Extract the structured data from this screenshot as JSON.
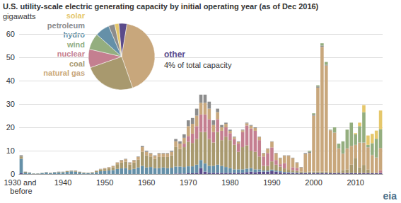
{
  "chart_data": [
    {
      "type": "bar",
      "title": "U.S. utility-scale electric generating capacity by initial operating year (as of Dec 2016)",
      "y_label": "gigawatts",
      "annotation": "eia",
      "stacked": true,
      "grid": true,
      "ylim": [
        0,
        60
      ],
      "yticks": [
        0,
        10,
        20,
        30,
        40,
        50,
        60
      ],
      "categories": [
        "1930 and before",
        null,
        null,
        null,
        null,
        null,
        null,
        null,
        null,
        null,
        "1940",
        null,
        null,
        null,
        null,
        null,
        null,
        null,
        null,
        null,
        "1950",
        null,
        null,
        null,
        null,
        null,
        null,
        null,
        null,
        null,
        "1960",
        null,
        null,
        null,
        null,
        null,
        null,
        null,
        null,
        null,
        "1970",
        null,
        null,
        null,
        null,
        null,
        null,
        null,
        null,
        null,
        "1980",
        null,
        null,
        null,
        null,
        null,
        null,
        null,
        null,
        null,
        "1990",
        null,
        null,
        null,
        null,
        null,
        null,
        null,
        null,
        null,
        "2000",
        null,
        null,
        null,
        null,
        null,
        null,
        null,
        null,
        null,
        "2010",
        null,
        null,
        null,
        null,
        null,
        null
      ],
      "series": [
        {
          "name": "other",
          "color": "#5b4b8a",
          "values": [
            0.3,
            0,
            0,
            0,
            0,
            0,
            0,
            0,
            0,
            0,
            0,
            0,
            0,
            0,
            0,
            0,
            0,
            0,
            0,
            0,
            0,
            0,
            0,
            0,
            0,
            0,
            0,
            0,
            0,
            0,
            0,
            0,
            0,
            0,
            0,
            0,
            0,
            0.2,
            0.2,
            0.2,
            0.3,
            0.3,
            0.5,
            2.5,
            1.0,
            0.5,
            0.5,
            0.5,
            0.5,
            0.5,
            0.5,
            0.5,
            0.5,
            0.5,
            0.8,
            1.0,
            0.8,
            1.0,
            1.0,
            1.0,
            1.2,
            1.0,
            0.8,
            0.5,
            0.5,
            0.4,
            0.4,
            0.3,
            0.3,
            0.3,
            0.3,
            0.3,
            0.3,
            0.3,
            0.3,
            0.3,
            0.3,
            0.3,
            0.3,
            0.3,
            0.3,
            0.3,
            0.3,
            0.3,
            0.3,
            0.3,
            0.3
          ]
        },
        {
          "name": "hydro",
          "color": "#6590a8",
          "values": [
            6.2,
            0.6,
            0.5,
            0.2,
            0.2,
            0.4,
            0.6,
            0.4,
            0.6,
            0.7,
            0.7,
            0.9,
            1.1,
            1.0,
            0.6,
            0.4,
            0.3,
            0.4,
            0.8,
            1.2,
            1.3,
            1.5,
            1.7,
            2.2,
            2.4,
            2.5,
            1.8,
            2.2,
            2.8,
            3.5,
            2.8,
            3.0,
            2.5,
            2.5,
            2.8,
            2.5,
            2.7,
            3.0,
            3.0,
            2.8,
            3.0,
            3.0,
            3.5,
            3.5,
            3.5,
            3.0,
            3.0,
            3.5,
            3.0,
            2.5,
            2.0,
            1.5,
            1.5,
            1.5,
            1.5,
            1.5,
            1.2,
            1.0,
            0.5,
            0.5,
            0.7,
            0.5,
            0.4,
            0.4,
            0.3,
            0.3,
            0.2,
            0.2,
            0.2,
            0.2,
            0.2,
            0.2,
            0.2,
            0.2,
            0.1,
            0.1,
            0.1,
            0.1,
            0.1,
            0.2,
            0.1,
            0.1,
            0.1,
            0.1,
            0.1,
            0.1,
            0.1
          ]
        },
        {
          "name": "coal",
          "color": "#a8996e",
          "values": [
            1,
            0.3,
            0.1,
            0.1,
            0.1,
            0.1,
            0.1,
            0.1,
            0.1,
            0.2,
            0.2,
            0.3,
            0.3,
            0.4,
            0.3,
            0.2,
            0.2,
            0.3,
            0.5,
            0.7,
            0.8,
            1.0,
            1.2,
            2.0,
            2.5,
            2.8,
            2.3,
            2.7,
            3.3,
            6.0,
            5.2,
            4.5,
            4.0,
            4.8,
            4.5,
            4.8,
            5.3,
            8.5,
            7.5,
            8.5,
            10.5,
            10.0,
            11.0,
            12.0,
            13.5,
            11.5,
            10.0,
            14.0,
            11.0,
            13.0,
            12.0,
            10.5,
            7.5,
            9.5,
            10.0,
            7.5,
            7.5,
            5.5,
            2.0,
            2.0,
            3.5,
            2.5,
            2.0,
            1.5,
            1.0,
            1.0,
            0.8,
            0.5,
            0.3,
            0.5,
            0.5,
            0.5,
            0.5,
            0.5,
            0.5,
            0.3,
            0.5,
            1.3,
            1.5,
            3.5,
            6.5,
            2.5,
            3.5,
            1.5,
            0.2,
            0.1,
            0.1
          ]
        },
        {
          "name": "nuclear",
          "color": "#c47f90",
          "values": [
            0,
            0,
            0,
            0,
            0,
            0,
            0,
            0,
            0,
            0,
            0,
            0,
            0,
            0,
            0,
            0,
            0,
            0,
            0,
            0,
            0,
            0,
            0,
            0,
            0,
            0,
            0,
            0,
            0,
            0,
            0,
            0,
            0,
            0,
            0,
            0,
            0,
            0,
            0,
            1.5,
            2.5,
            4.0,
            5.5,
            7.5,
            7.5,
            8.5,
            4.5,
            5.5,
            4.0,
            4.0,
            3.0,
            2.5,
            3.5,
            6.5,
            8.5,
            9.5,
            9.0,
            7.0,
            4.0,
            5.5,
            6.0,
            2.0,
            1.0,
            2.3,
            0,
            1.2,
            1.2,
            0,
            0,
            0,
            0,
            0,
            0,
            0,
            0,
            0,
            0,
            0,
            0,
            0,
            0,
            0,
            0,
            0,
            0,
            0,
            1.1
          ]
        },
        {
          "name": "natural gas",
          "color": "#c8a77c",
          "values": [
            0,
            0,
            0,
            0,
            0,
            0,
            0,
            0,
            0,
            0,
            0,
            0,
            0,
            0,
            0,
            0,
            0,
            0,
            0.1,
            0.2,
            0.3,
            0.4,
            0.5,
            0.7,
            0.9,
            1.0,
            0.7,
            0.9,
            1.2,
            2.0,
            1.5,
            1.2,
            1.2,
            1.4,
            1.4,
            1.4,
            1.5,
            2.3,
            2.3,
            2.5,
            4.2,
            4.2,
            4.5,
            5.0,
            5.0,
            4.5,
            3.0,
            3.0,
            1.5,
            1.5,
            1.0,
            0.7,
            0.7,
            0.7,
            0.9,
            1.2,
            1.2,
            1.3,
            1.3,
            1.8,
            2.4,
            2.8,
            2.6,
            3.1,
            6.0,
            3.9,
            2.2,
            1.8,
            7.8,
            8.0,
            24.0,
            36.0,
            53.5,
            45.5,
            17.8,
            17.0,
            10.0,
            7.0,
            9.0,
            8.0,
            5.5,
            10.5,
            9.5,
            9.5,
            7.5,
            6.5,
            9.5
          ]
        },
        {
          "name": "petroleum",
          "color": "#8c8c8c",
          "values": [
            0.5,
            0.1,
            0.1,
            0,
            0,
            0,
            0.1,
            0.1,
            0.1,
            0.1,
            0.1,
            0.1,
            0.1,
            0.1,
            0.1,
            0.1,
            0.1,
            0.1,
            0.1,
            0.1,
            0.1,
            0.1,
            0.1,
            0.1,
            0.2,
            0.2,
            0.2,
            0.2,
            0.2,
            0.5,
            0.5,
            0.3,
            0.3,
            0.3,
            0.3,
            0.3,
            0.5,
            1.0,
            1.0,
            1.5,
            2.5,
            2.5,
            3.0,
            3.5,
            3.5,
            3.0,
            2.0,
            1.5,
            1.0,
            0.5,
            0.5,
            0.3,
            0.3,
            0.3,
            0.3,
            0.3,
            0.3,
            0.2,
            0.2,
            0.2,
            0.2,
            0.2,
            0.2,
            0.2,
            0.2,
            0.2,
            0.2,
            0.2,
            0.4,
            0.5,
            0.5,
            0.5,
            0.5,
            0.3,
            0.1,
            0.1,
            0.1,
            0.1,
            0.1,
            0.1,
            0.1,
            0.1,
            0.1,
            0.1,
            0.1,
            0.1,
            0.1
          ]
        },
        {
          "name": "wind",
          "color": "#94ae7f",
          "values": [
            0,
            0,
            0,
            0,
            0,
            0,
            0,
            0,
            0,
            0,
            0,
            0,
            0,
            0,
            0,
            0,
            0,
            0,
            0,
            0,
            0,
            0,
            0,
            0,
            0,
            0,
            0,
            0,
            0,
            0,
            0,
            0,
            0,
            0,
            0,
            0,
            0,
            0,
            0,
            0,
            0,
            0,
            0,
            0,
            0,
            0,
            0,
            0,
            0,
            0,
            0,
            0,
            0,
            0,
            0,
            0,
            0,
            0,
            0,
            0,
            0,
            0,
            0,
            0,
            0,
            0,
            0,
            0,
            0,
            0.5,
            0.5,
            0.5,
            1.0,
            1.2,
            0.2,
            2.2,
            2.0,
            5.2,
            8.0,
            9.9,
            4.5,
            7.0,
            13.0,
            1.0,
            5.0,
            8.0,
            8.0
          ]
        },
        {
          "name": "solar",
          "color": "#e5c76b",
          "values": [
            0,
            0,
            0,
            0,
            0,
            0,
            0,
            0,
            0,
            0,
            0,
            0,
            0,
            0,
            0,
            0,
            0,
            0,
            0,
            0,
            0,
            0,
            0,
            0,
            0,
            0,
            0,
            0,
            0,
            0,
            0,
            0,
            0,
            0,
            0,
            0,
            0,
            0,
            0,
            0,
            0,
            0,
            0,
            0,
            0,
            0,
            0,
            0,
            0,
            0,
            0,
            0,
            0,
            0,
            0,
            0,
            0,
            0,
            0,
            0,
            0,
            0,
            0,
            0,
            0,
            0,
            0,
            0,
            0,
            0,
            0,
            0,
            0,
            0,
            0,
            0,
            0,
            0,
            0,
            0,
            0.5,
            1.5,
            3.0,
            4.0,
            4.0,
            3.5,
            8.0
          ]
        }
      ]
    },
    {
      "type": "pie",
      "categories": [
        "other",
        "natural gas",
        "coal",
        "nuclear",
        "wind",
        "hydro",
        "petroleum",
        "solar"
      ],
      "values": [
        4,
        42,
        25,
        9,
        8,
        7,
        3,
        2
      ],
      "colors": [
        "#5b4b8a",
        "#c8a77c",
        "#a8996e",
        "#c47f90",
        "#94ae7f",
        "#6590a8",
        "#8c8c8c",
        "#e5c76b"
      ],
      "annotation": {
        "category": "other",
        "text": "4% of total capacity"
      }
    }
  ]
}
